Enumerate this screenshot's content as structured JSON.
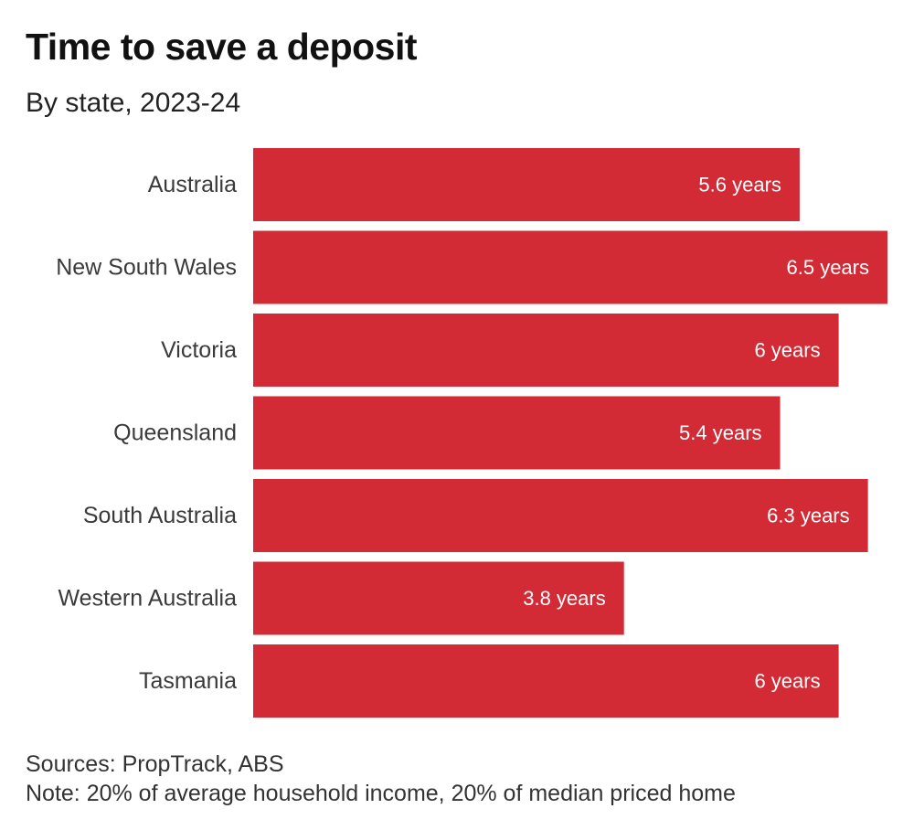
{
  "chart_data": {
    "type": "bar",
    "orientation": "horizontal",
    "title": "Time to save a deposit",
    "subtitle": "By state, 2023-24",
    "categories": [
      "Australia",
      "New South Wales",
      "Victoria",
      "Queensland",
      "South Australia",
      "Western Australia",
      "Tasmania"
    ],
    "values": [
      5.6,
      6.5,
      6,
      5.4,
      6.3,
      3.8,
      6
    ],
    "value_labels": [
      "5.6 years",
      "6.5 years",
      "6 years",
      "5.4 years",
      "6.3 years",
      "3.8 years",
      "6 years"
    ],
    "xlim": [
      0,
      6.5
    ],
    "grid": false,
    "bar_color": "#d22b35",
    "sources": "Sources: PropTrack, ABS",
    "note": "Note: 20% of average household income, 20% of median priced home"
  }
}
